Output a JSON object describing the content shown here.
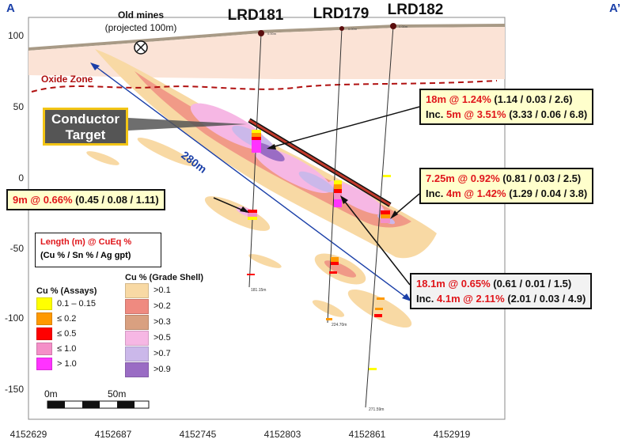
{
  "section": {
    "start_label": "A",
    "end_label": "A’"
  },
  "annotations": {
    "old_mines": "Old mines",
    "old_mines_sub": "(projected 100m)",
    "oxide_zone": "Oxide Zone",
    "conductor_line1": "Conductor",
    "conductor_line2": "Target",
    "distance": "280m"
  },
  "drillholes": [
    {
      "name": "LRD181",
      "collar": "0.00m",
      "end_depth": "181.15m"
    },
    {
      "name": "LRD179",
      "collar": "0.00m",
      "end_depth": "224.70m"
    },
    {
      "name": "LRD182",
      "collar": "0.00m",
      "end_depth": "271.59m"
    }
  ],
  "axes": {
    "y_ticks": [
      "100",
      "50",
      "0",
      "-50",
      "-100",
      "-150"
    ],
    "x_ticks": [
      "4152629",
      "4152687",
      "4152745",
      "4152803",
      "4152861",
      "4152919"
    ]
  },
  "intercepts": {
    "lrd181": {
      "main": "9m @ 0.66%",
      "detail": " (0.45 / 0.08 / 1.11)"
    },
    "lrd182_top": {
      "main": "18m @ 1.24%",
      "detail": " (1.14 / 0.03 / 2.6)",
      "inc_prefix": "Inc. ",
      "inc": "5m @ 3.51%",
      "inc_detail": " (3.33 / 0.06 / 6.8)"
    },
    "lrd182_mid": {
      "main": "7.25m @ 0.92%",
      "detail": " (0.81 / 0.03 / 2.5)",
      "inc_prefix": "Inc. ",
      "inc": "4m @ 1.42%",
      "inc_detail": " (1.29 / 0.04 / 3.8)"
    },
    "lrd179": {
      "main": "18.1m @ 0.65%",
      "detail": " (0.61 / 0.01 / 1.5)",
      "inc_prefix": "Inc. ",
      "inc": "4.1m @ 2.11%",
      "inc_detail": " (2.01 / 0.03 / 4.9)"
    }
  },
  "key": {
    "line1": "Length (m) @ CuEq %",
    "line2": "(Cu % / Sn % / Ag gpt)"
  },
  "legend_assays": {
    "title": "Cu % (Assays)",
    "items": [
      {
        "label": "0.1 – 0.15",
        "color": "#ffff00"
      },
      {
        "label": "≤ 0.2",
        "color": "#ff9900"
      },
      {
        "label": "≤ 0.5",
        "color": "#ff0000"
      },
      {
        "label": "≤ 1.0",
        "color": "#f48fc8"
      },
      {
        "label": "> 1.0",
        "color": "#ff33ff"
      }
    ]
  },
  "legend_shell": {
    "title": "Cu % (Grade Shell)",
    "items": [
      {
        "label": ">0.1",
        "color": "#f8d9a4"
      },
      {
        "label": ">0.2",
        "color": "#ef8a80"
      },
      {
        "label": ">0.3",
        "color": "#d9a080"
      },
      {
        "label": ">0.5",
        "color": "#f6b7e4"
      },
      {
        "label": ">0.7",
        "color": "#cbb8ea"
      },
      {
        "label": ">0.9",
        "color": "#9a6cc4"
      }
    ]
  },
  "scale_bar": {
    "start": "0m",
    "end": "50m"
  }
}
